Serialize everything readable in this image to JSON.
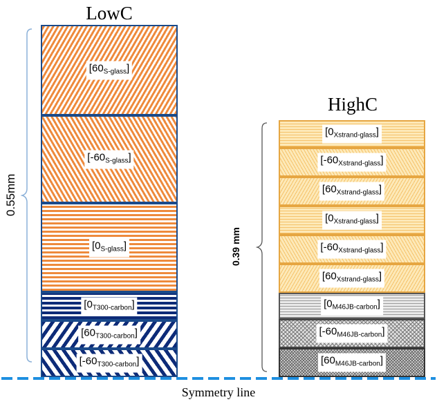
{
  "low": {
    "title": "LowC",
    "thickness": "0.55mm",
    "plies": [
      {
        "main": "[60",
        "sub": "S-glass",
        "close": "]"
      },
      {
        "main": "[-60",
        "sub": "S-glass",
        "close": "]"
      },
      {
        "main": "[0",
        "sub": "S-glass",
        "close": "]"
      },
      {
        "main": "[0",
        "sub": "T300-carbon",
        "close": "]"
      },
      {
        "main": "[60",
        "sub": "T300-carbon",
        "close": "]"
      },
      {
        "main": "[-60",
        "sub": "T300-carbon",
        "close": "]"
      }
    ]
  },
  "high": {
    "title": "HighC",
    "thickness": "0.39 mm",
    "plies": [
      {
        "main": "[0",
        "sub": "Xstrand-glass",
        "close": "]"
      },
      {
        "main": "[-60",
        "sub": "Xstrand-glass",
        "close": "]"
      },
      {
        "main": "[60",
        "sub": "Xstrand-glass",
        "close": "]"
      },
      {
        "main": "[0",
        "sub": "Xstrand-glass",
        "close": "]"
      },
      {
        "main": "[-60",
        "sub": "Xstrand-glass",
        "close": "]"
      },
      {
        "main": "[60",
        "sub": "Xstrand-glass",
        "close": "]"
      },
      {
        "main": "[0",
        "sub": "M46JB-carbon",
        "close": "]"
      },
      {
        "main": "[-60",
        "sub": "M46JB-carbon",
        "close": "]"
      },
      {
        "main": "[60",
        "sub": "M46JB-carbon",
        "close": "]"
      }
    ]
  },
  "symmetry_label": "Symmetry line",
  "colors": {
    "s_glass": "#ee8a3c",
    "t300_carbon": "#0d2b78",
    "xstrand_glass": "#fde9b8",
    "m46jb_carbon": "#9a9a9a",
    "symmetry_line": "#1e8fe0"
  }
}
